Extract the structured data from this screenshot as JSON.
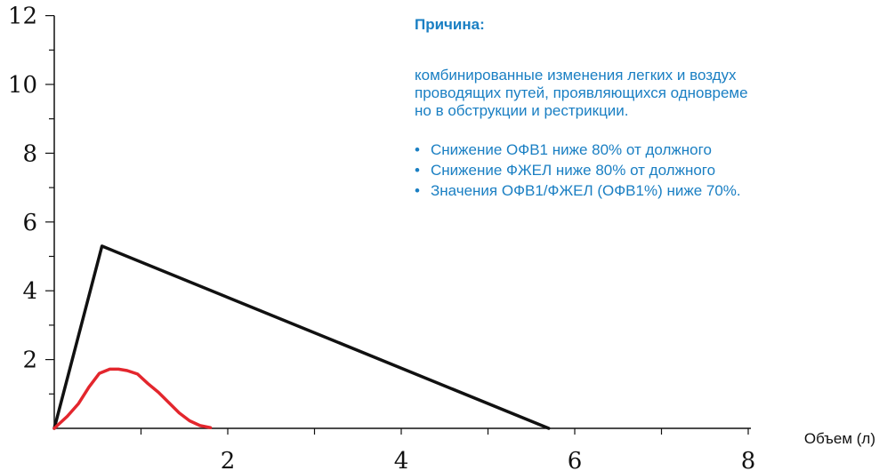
{
  "chart_data": {
    "type": "line",
    "title": "",
    "xlabel": "Объем (л)",
    "ylabel": "",
    "xlim": [
      0,
      8
    ],
    "ylim": [
      0,
      12
    ],
    "x_tick_labels": [
      "2",
      "4",
      "6",
      "8"
    ],
    "y_tick_labels": [
      "2",
      "4",
      "6",
      "8",
      "10",
      "12"
    ],
    "grid": false,
    "series": [
      {
        "color": "#111111",
        "x": [
          0,
          0.55,
          5.7
        ],
        "y": [
          0,
          5.3,
          0
        ]
      },
      {
        "color": "#e3262d",
        "x": [
          0,
          0.15,
          0.28,
          0.4,
          0.52,
          0.64,
          0.74,
          0.84,
          0.96,
          1.08,
          1.2,
          1.32,
          1.44,
          1.56,
          1.68,
          1.8
        ],
        "y": [
          0,
          0.35,
          0.72,
          1.2,
          1.6,
          1.72,
          1.72,
          1.68,
          1.58,
          1.3,
          1.05,
          0.75,
          0.45,
          0.22,
          0.08,
          0.02
        ]
      }
    ]
  },
  "panel": {
    "heading": "Причина:",
    "paragraph_lines": [
      "комбинированные изменения легких и воздух",
      "проводящих путей, проявляющихся одновреме",
      "но в обструкции и рестрикции."
    ],
    "bullets": [
      "Снижение ОФВ1 ниже 80% от должного",
      "Снижение ФЖЕЛ ниже 80% от должного",
      "Значения ОФВ1/ФЖЕЛ (ОФВ1%) ниже 70%."
    ],
    "text_color": "#1a7fc3"
  }
}
